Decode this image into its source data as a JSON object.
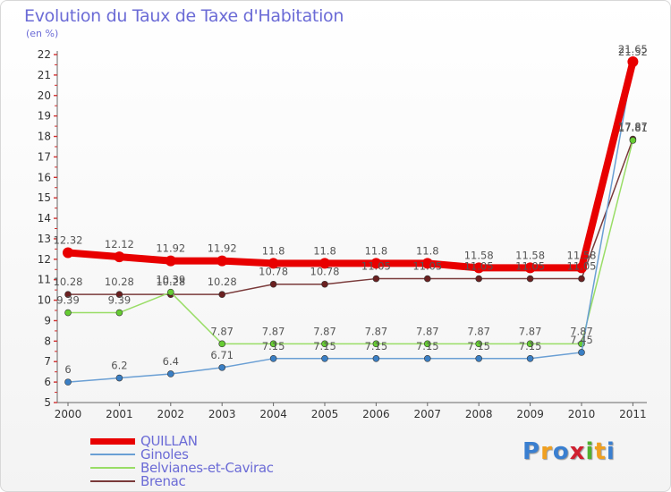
{
  "title": "Evolution du Taux de Taxe d'Habitation",
  "subtitle": "(en %)",
  "logo_text": "Proxiti",
  "chart_data": {
    "type": "line",
    "title": "Evolution du Taux de Taxe d'Habitation",
    "ylabel": "(en %)",
    "xlabel": "",
    "categories": [
      "2000",
      "2001",
      "2002",
      "2003",
      "2004",
      "2005",
      "2006",
      "2007",
      "2008",
      "2009",
      "2010",
      "2011"
    ],
    "ylim": [
      5,
      22
    ],
    "yticks": [
      5,
      6,
      7,
      8,
      9,
      10,
      11,
      12,
      13,
      14,
      15,
      16,
      17,
      18,
      19,
      20,
      21,
      22
    ],
    "grid": false,
    "legend_position": "bottom-left",
    "series": [
      {
        "name": "QUILLAN",
        "color": "#e80000",
        "marker": "#e80000",
        "values": [
          12.32,
          12.12,
          11.92,
          11.92,
          11.8,
          11.8,
          11.8,
          11.8,
          11.58,
          11.58,
          11.58,
          21.65
        ]
      },
      {
        "name": "Ginoles",
        "color": "#6a9fd4",
        "marker": "#3b7fc4",
        "values": [
          6,
          6.2,
          6.4,
          6.71,
          7.15,
          7.15,
          7.15,
          7.15,
          7.15,
          7.15,
          7.45,
          21.52
        ]
      },
      {
        "name": "Belvianes-et-Cavirac",
        "color": "#99dd66",
        "marker": "#66cc33",
        "values": [
          9.39,
          9.39,
          10.39,
          7.87,
          7.87,
          7.87,
          7.87,
          7.87,
          7.87,
          7.87,
          7.87,
          17.81
        ]
      },
      {
        "name": "Brenac",
        "color": "#7a3a3a",
        "marker": "#6a2020",
        "values": [
          10.28,
          10.28,
          10.28,
          10.28,
          10.78,
          10.78,
          11.05,
          11.05,
          11.05,
          11.05,
          11.05,
          17.87
        ]
      }
    ],
    "value_labels": {
      "QUILLAN": [
        "12.32",
        "12.12",
        "11.92",
        "11.92",
        "11.8",
        "11.8",
        "11.8",
        "11.8",
        "11.58",
        "11.58",
        "11.58",
        "21.65"
      ],
      "Ginoles": [
        "6",
        "6.2",
        "6.4",
        "6.71",
        "7.15",
        "7.15",
        "7.15",
        "7.15",
        "7.15",
        "7.15",
        "7.45",
        "21.52"
      ],
      "Belvianes-et-Cavirac": [
        "9.39",
        "9.39",
        "10.39",
        "7.87",
        "7.87",
        "7.87",
        "7.87",
        "7.87",
        "7.87",
        "7.87",
        "7.87",
        "17.81"
      ],
      "Brenac": [
        "10.28",
        "10.28",
        "10.28",
        "10.28",
        "10.78",
        "10.78",
        "11.05",
        "11.05",
        "11.05",
        "11.05",
        "11.05",
        "17.87"
      ]
    }
  }
}
